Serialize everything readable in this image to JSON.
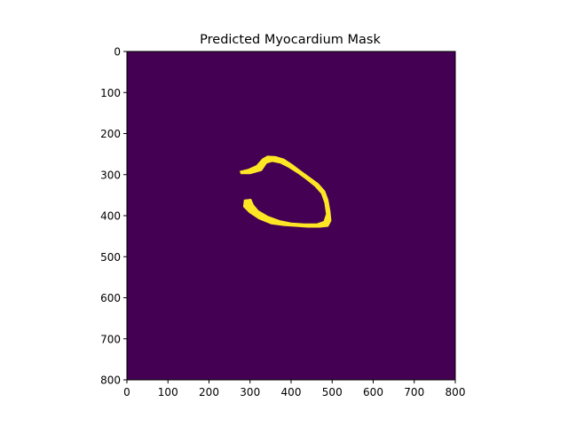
{
  "chart_data": {
    "type": "heatmap",
    "title": "Predicted Myocardium Mask",
    "xlabel": "",
    "ylabel": "",
    "xlim": [
      0,
      800
    ],
    "ylim": [
      800,
      0
    ],
    "x_ticks": [
      0,
      100,
      200,
      300,
      400,
      500,
      600,
      700,
      800
    ],
    "y_ticks": [
      0,
      100,
      200,
      300,
      400,
      500,
      600,
      700,
      800
    ],
    "y_axis_inverted": true,
    "grid": false,
    "legend": "none",
    "colormap": "viridis",
    "values": [
      0,
      1
    ],
    "colors": {
      "background": "#440154",
      "mask": "#fde725"
    },
    "mask_region": {
      "value": 1,
      "shape": "open C-shaped ring (myocardium)",
      "outer_boundary": [
        [
          276,
          292
        ],
        [
          296,
          287
        ],
        [
          316,
          278
        ],
        [
          330,
          262
        ],
        [
          342,
          255
        ],
        [
          362,
          256
        ],
        [
          382,
          262
        ],
        [
          402,
          275
        ],
        [
          422,
          290
        ],
        [
          444,
          306
        ],
        [
          466,
          322
        ],
        [
          482,
          340
        ],
        [
          490,
          362
        ],
        [
          495,
          390
        ],
        [
          497,
          412
        ],
        [
          490,
          426
        ],
        [
          470,
          428
        ],
        [
          440,
          428
        ],
        [
          410,
          426
        ],
        [
          382,
          424
        ],
        [
          352,
          420
        ],
        [
          322,
          408
        ],
        [
          298,
          392
        ],
        [
          284,
          378
        ],
        [
          286,
          362
        ],
        [
          302,
          360
        ],
        [
          308,
          374
        ],
        [
          320,
          388
        ],
        [
          344,
          402
        ],
        [
          372,
          412
        ],
        [
          400,
          418
        ],
        [
          432,
          420
        ],
        [
          462,
          420
        ],
        [
          480,
          414
        ],
        [
          486,
          396
        ],
        [
          482,
          368
        ],
        [
          474,
          346
        ],
        [
          458,
          328
        ],
        [
          438,
          312
        ],
        [
          416,
          296
        ],
        [
          394,
          282
        ],
        [
          374,
          272
        ],
        [
          354,
          268
        ],
        [
          340,
          272
        ],
        [
          328,
          290
        ],
        [
          300,
          298
        ],
        [
          278,
          298
        ]
      ]
    }
  }
}
